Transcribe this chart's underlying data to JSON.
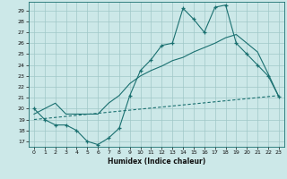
{
  "title": "",
  "xlabel": "Humidex (Indice chaleur)",
  "bg_color": "#cce8e8",
  "line_color": "#1a7070",
  "grid_color": "#a0c8c8",
  "xlim": [
    -0.5,
    23.5
  ],
  "ylim": [
    16.5,
    29.8
  ],
  "xticks": [
    0,
    1,
    2,
    3,
    4,
    5,
    6,
    7,
    8,
    9,
    10,
    11,
    12,
    13,
    14,
    15,
    16,
    17,
    18,
    19,
    20,
    21,
    22,
    23
  ],
  "yticks": [
    17,
    18,
    19,
    20,
    21,
    22,
    23,
    24,
    25,
    26,
    27,
    28,
    29
  ],
  "main_curve": [
    20,
    19,
    18.5,
    18.5,
    18,
    17,
    16.7,
    17.3,
    18.2,
    21.2,
    23.5,
    24.5,
    25.8,
    26.0,
    29.2,
    28.2,
    27.0,
    29.3,
    29.5,
    26.0,
    25.0,
    24.0,
    23.0,
    21.1
  ],
  "upper_line": [
    19.5,
    20.0,
    20.5,
    19.5,
    19.5,
    19.5,
    19.5,
    20.5,
    21.2,
    22.3,
    23.0,
    23.5,
    23.9,
    24.4,
    24.7,
    25.2,
    25.6,
    26.0,
    26.5,
    26.8,
    26.0,
    25.2,
    23.2,
    21.1
  ],
  "lower_line_x": [
    0,
    23
  ],
  "lower_line_y": [
    19.0,
    21.2
  ],
  "hours": [
    0,
    1,
    2,
    3,
    4,
    5,
    6,
    7,
    8,
    9,
    10,
    11,
    12,
    13,
    14,
    15,
    16,
    17,
    18,
    19,
    20,
    21,
    22,
    23
  ]
}
